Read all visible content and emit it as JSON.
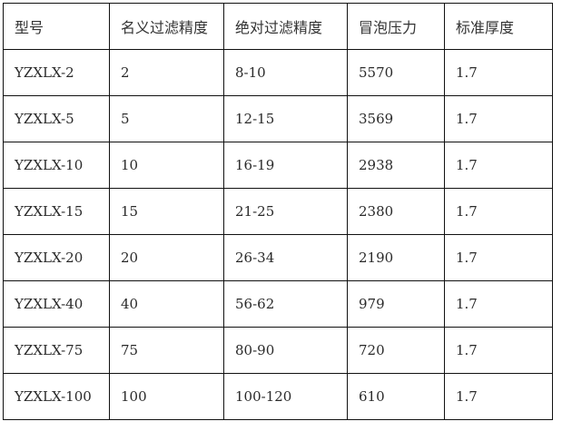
{
  "table": {
    "headers": [
      "型号",
      "名义过滤精度",
      "绝对过滤精度",
      "冒泡压力",
      "标准厚度"
    ],
    "rows": [
      [
        "YZXLX-2",
        "2",
        "8-10",
        "5570",
        "1.7"
      ],
      [
        "YZXLX-5",
        "5",
        "12-15",
        "3569",
        "1.7"
      ],
      [
        "YZXLX-10",
        "10",
        "16-19",
        "2938",
        "1.7"
      ],
      [
        "YZXLX-15",
        "15",
        "21-25",
        "2380",
        "1.7"
      ],
      [
        "YZXLX-20",
        "20",
        "26-34",
        "2190",
        "1.7"
      ],
      [
        "YZXLX-40",
        "40",
        "56-62",
        "979",
        "1.7"
      ],
      [
        "YZXLX-75",
        "75",
        "80-90",
        "720",
        "1.7"
      ],
      [
        "YZXLX-100",
        "100",
        "100-120",
        "610",
        "1.7"
      ]
    ]
  }
}
